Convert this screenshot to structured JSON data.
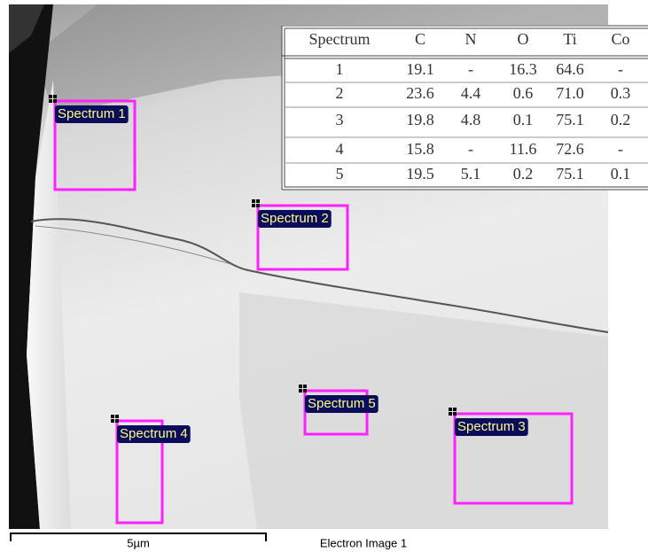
{
  "table": {
    "header": [
      "Spectrum",
      "C",
      "N",
      "O",
      "Ti",
      "Co"
    ],
    "rows": [
      [
        "1",
        "19.1",
        "-",
        "16.3",
        "64.6",
        "-"
      ],
      [
        "2",
        "23.6",
        "4.4",
        "0.6",
        "71.0",
        "0.3"
      ],
      [
        "3",
        "19.8",
        "4.8",
        "0.1",
        "75.1",
        "0.2"
      ],
      [
        "4",
        "15.8",
        "-",
        "11.6",
        "72.6",
        "-"
      ],
      [
        "5",
        "19.5",
        "5.1",
        "0.2",
        "75.1",
        "0.1"
      ]
    ]
  },
  "spectra": [
    "Spectrum 1",
    "Spectrum 2",
    "Spectrum 3",
    "Spectrum 4",
    "Spectrum 5"
  ],
  "scale_bar": "5µm",
  "caption": "Electron Image 1"
}
